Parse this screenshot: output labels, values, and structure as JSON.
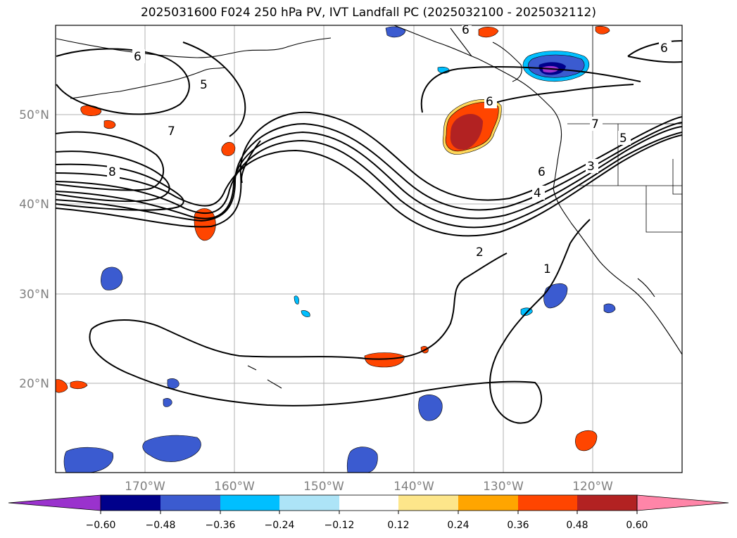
{
  "title": "2025031600 F024 250 hPa PV, IVT Landfall PC (2025032100 - 2025032112)",
  "map": {
    "lon_range": [
      -180,
      -110
    ],
    "lat_range": [
      10,
      60
    ],
    "lon_tick_labels": [
      "170°W",
      "160°W",
      "150°W",
      "140°W",
      "130°W",
      "120°W"
    ],
    "lat_tick_labels": [
      "50°N",
      "40°N",
      "30°N",
      "20°N"
    ],
    "pv_contour_labels": [
      "6",
      "5",
      "7",
      "8",
      "6",
      "6",
      "6",
      "7",
      "5",
      "3",
      "4",
      "6",
      "2",
      "1"
    ],
    "grid": true
  },
  "colorbar": {
    "ticks": [
      "−0.60",
      "−0.48",
      "−0.36",
      "−0.24",
      "−0.12",
      "0.12",
      "0.24",
      "0.36",
      "0.48",
      "0.60"
    ],
    "colors": [
      "#9a32cd",
      "#00008b",
      "#3b5bd0",
      "#00bfff",
      "#ade4f7",
      "#ffffff",
      "#fde68a",
      "#ffa500",
      "#ff4500",
      "#b22222",
      "#ff85a8"
    ]
  }
}
